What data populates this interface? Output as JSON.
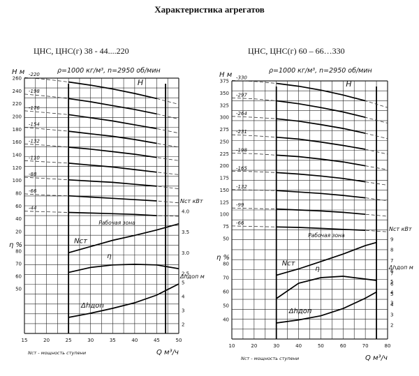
{
  "page_title": "Характеристика агрегатов",
  "chart_data": [
    {
      "type": "line",
      "title": "ЦНС, ЦНС(г) 38 - 44....220",
      "condition_text": "ρ=1000 кг/м³, n=2950 об/мин",
      "xlabel": "Q м³/ч",
      "x_ticks": [
        15,
        20,
        25,
        30,
        35,
        40,
        45,
        50
      ],
      "xlim": [
        15,
        50
      ],
      "footnote": "Nст - мощность ступени",
      "work_zone_label": "Рабочая зона",
      "work_zone_x": [
        25,
        47
      ],
      "H_axis": {
        "label": "H м",
        "ticks": [
          20,
          40,
          60,
          80,
          100,
          120,
          140,
          160,
          180,
          200,
          220,
          240,
          260
        ],
        "lim": [
          20,
          260
        ]
      },
      "N_axis": {
        "label": "Nст кВт",
        "ticks": [
          2.5,
          3.0,
          3.5,
          4.0
        ],
        "lim": [
          2.5,
          4.0
        ]
      },
      "eta_axis": {
        "label": "η %",
        "ticks": [
          50,
          60,
          70,
          80
        ],
        "lim": [
          50,
          80
        ]
      },
      "dh_axis": {
        "label": "Δhдоп м",
        "ticks": [
          2,
          3,
          4,
          5
        ],
        "lim": [
          2,
          5
        ]
      },
      "H_curve_label": "H",
      "N_curve_label": "Nст",
      "eta_curve_label": "η",
      "dh_curve_label": "Δhдоп",
      "H_series": [
        {
          "name": "220",
          "x": [
            15,
            20,
            25,
            30,
            35,
            40,
            45,
            50
          ],
          "values": [
            261,
            258,
            254,
            249,
            243,
            236,
            228,
            219
          ]
        },
        {
          "name": "198",
          "x": [
            15,
            20,
            25,
            30,
            35,
            40,
            45,
            50
          ],
          "values": [
            235,
            232,
            228,
            223,
            217,
            211,
            204,
            196
          ]
        },
        {
          "name": "176",
          "x": [
            15,
            20,
            25,
            30,
            35,
            40,
            45,
            50
          ],
          "values": [
            209,
            206,
            203,
            198,
            193,
            187,
            181,
            174
          ]
        },
        {
          "name": "154",
          "x": [
            15,
            20,
            25,
            30,
            35,
            40,
            45,
            50
          ],
          "values": [
            183,
            180,
            177,
            173,
            169,
            164,
            158,
            152
          ]
        },
        {
          "name": "132",
          "x": [
            15,
            20,
            25,
            30,
            35,
            40,
            45,
            50
          ],
          "values": [
            157,
            155,
            152,
            149,
            145,
            141,
            136,
            131
          ]
        },
        {
          "name": "110",
          "x": [
            15,
            20,
            25,
            30,
            35,
            40,
            45,
            50
          ],
          "values": [
            131,
            129,
            127,
            124,
            121,
            117,
            113,
            109
          ]
        },
        {
          "name": "88",
          "x": [
            15,
            20,
            25,
            30,
            35,
            40,
            45,
            50
          ],
          "values": [
            105,
            103,
            101,
            99,
            97,
            94,
            91,
            87
          ]
        },
        {
          "name": "66",
          "x": [
            15,
            20,
            25,
            30,
            35,
            40,
            45,
            50
          ],
          "values": [
            79,
            77,
            76,
            74,
            72,
            70,
            68,
            65
          ]
        },
        {
          "name": "44",
          "x": [
            15,
            20,
            25,
            30,
            35,
            40,
            45,
            50
          ],
          "values": [
            52,
            51,
            50,
            49,
            48,
            47,
            45,
            44
          ]
        }
      ],
      "N_values": {
        "x": [
          25,
          30,
          35,
          40,
          45,
          50
        ],
        "values": [
          3.0,
          3.15,
          3.3,
          3.42,
          3.55,
          3.7
        ]
      },
      "eta_values": {
        "x": [
          25,
          30,
          35,
          40,
          45,
          50
        ],
        "values": [
          63,
          67,
          69,
          69.5,
          69,
          66
        ]
      },
      "dh_values": {
        "x": [
          25,
          30,
          35,
          40,
          45,
          50
        ],
        "values": [
          2.5,
          2.8,
          3.15,
          3.55,
          4.1,
          4.9
        ]
      }
    },
    {
      "type": "line",
      "title": "ЦНС, ЦНС(г) 60 – 66…330",
      "condition_text": "ρ=1000 кг/м³, n=2950 об/мин",
      "xlabel": "Q м³/ч",
      "x_ticks": [
        10,
        20,
        30,
        40,
        50,
        60,
        70,
        80
      ],
      "xlim": [
        10,
        80
      ],
      "footnote": "Nст - мощность ступени",
      "work_zone_label": "Рабочая зона",
      "work_zone_x": [
        30,
        75
      ],
      "H_axis": {
        "label": "H м",
        "ticks": [
          50,
          75,
          100,
          125,
          150,
          175,
          200,
          225,
          250,
          275,
          300,
          325,
          350,
          375
        ],
        "lim": [
          50,
          375
        ]
      },
      "N_axis": {
        "label": "Nст кВт",
        "ticks": [
          3,
          4,
          5,
          6,
          7,
          8,
          9
        ],
        "lim": [
          3,
          9
        ]
      },
      "eta_axis": {
        "label": "η %",
        "ticks": [
          40,
          50,
          60,
          70,
          80
        ],
        "lim": [
          40,
          80
        ]
      },
      "dh_axis": {
        "label": "Δhдоп м",
        "ticks": [
          2,
          3,
          4,
          5,
          6,
          7
        ],
        "lim": [
          2,
          7
        ]
      },
      "H_curve_label": "H",
      "N_curve_label": "Nст",
      "eta_curve_label": "η",
      "dh_curve_label": "Δhдоп",
      "H_series": [
        {
          "name": "330",
          "x": [
            10,
            20,
            30,
            40,
            50,
            60,
            70,
            80
          ],
          "values": [
            376,
            374,
            370,
            364,
            356,
            346,
            334,
            320
          ]
        },
        {
          "name": "297",
          "x": [
            10,
            20,
            30,
            40,
            50,
            60,
            70,
            80
          ],
          "values": [
            340,
            338,
            334,
            328,
            320,
            311,
            300,
            288
          ]
        },
        {
          "name": "264",
          "x": [
            10,
            20,
            30,
            40,
            50,
            60,
            70,
            80
          ],
          "values": [
            302,
            300,
            297,
            292,
            285,
            277,
            267,
            256
          ]
        },
        {
          "name": "231",
          "x": [
            10,
            20,
            30,
            40,
            50,
            60,
            70,
            80
          ],
          "values": [
            264,
            262,
            259,
            255,
            249,
            242,
            234,
            224
          ]
        },
        {
          "name": "198",
          "x": [
            10,
            20,
            30,
            40,
            50,
            60,
            70,
            80
          ],
          "values": [
            226,
            225,
            222,
            219,
            214,
            208,
            200,
            192
          ]
        },
        {
          "name": "165",
          "x": [
            10,
            20,
            30,
            40,
            50,
            60,
            70,
            80
          ],
          "values": [
            189,
            188,
            186,
            183,
            179,
            174,
            167,
            160
          ]
        },
        {
          "name": "132",
          "x": [
            10,
            20,
            30,
            40,
            50,
            60,
            70,
            80
          ],
          "values": [
            151,
            150,
            149,
            146,
            143,
            139,
            134,
            128
          ]
        },
        {
          "name": "99",
          "x": [
            10,
            20,
            30,
            40,
            50,
            60,
            70,
            80
          ],
          "values": [
            113,
            112,
            111,
            109,
            107,
            104,
            100,
            96
          ]
        },
        {
          "name": "66",
          "x": [
            10,
            20,
            30,
            40,
            50,
            60,
            70,
            80
          ],
          "values": [
            76,
            75,
            74,
            73,
            71,
            69,
            67,
            64
          ]
        }
      ],
      "N_values": {
        "x": [
          30,
          40,
          50,
          60,
          70,
          75
        ],
        "values": [
          5.6,
          6.2,
          6.9,
          7.6,
          8.4,
          8.7
        ]
      },
      "eta_values": {
        "x": [
          30,
          40,
          50,
          60,
          70,
          75
        ],
        "values": [
          55,
          66,
          70,
          71,
          69,
          68
        ]
      },
      "dh_values": {
        "x": [
          30,
          40,
          50,
          60,
          70,
          75
        ],
        "values": [
          2.2,
          2.5,
          2.9,
          3.6,
          4.6,
          5.2
        ]
      }
    }
  ]
}
